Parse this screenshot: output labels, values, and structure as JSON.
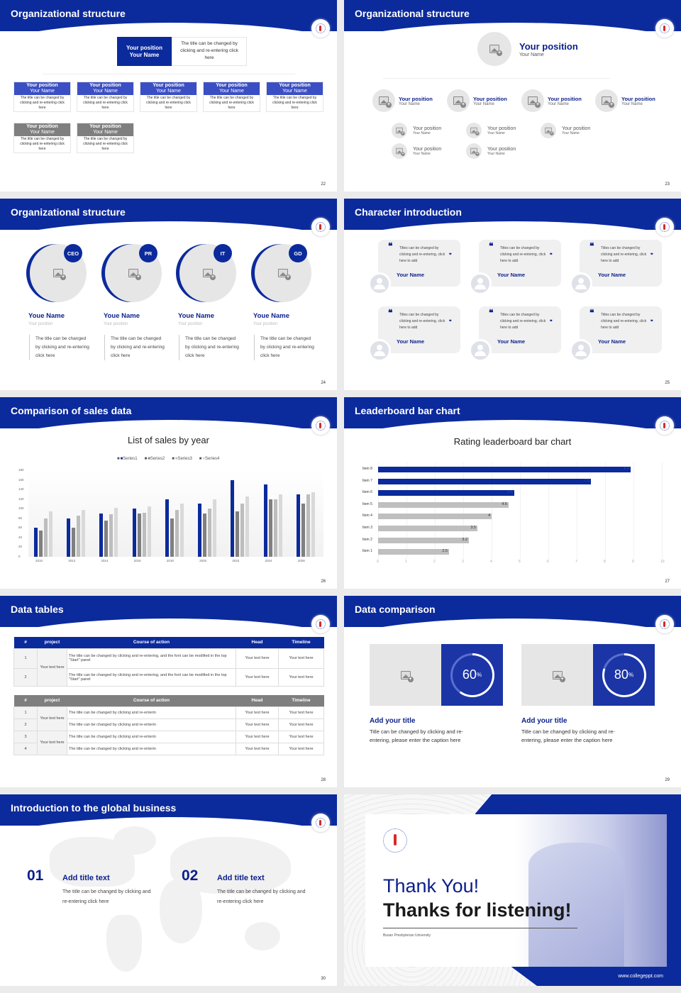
{
  "colors": {
    "brand": "#0b2a9c",
    "navy": "#0b1f8a",
    "gray_dark": "#808080",
    "gray_mid": "#bdbdbd",
    "gray_light": "#d9d9d9"
  },
  "slides": [
    {
      "title": "Organizational structure",
      "page": "22",
      "top": {
        "position": "Your position",
        "name": "Your Name",
        "desc": "The title can be changed by clicking and re-entering click here"
      },
      "row1": [
        {
          "position": "Your position",
          "name": "Your Name",
          "desc": "The title can be changed by clicking and re-entering click here"
        },
        {
          "position": "Your position",
          "name": "Your Name",
          "desc": "The title can be changed by clicking and re-entering click here"
        },
        {
          "position": "Your position",
          "name": "Your Name",
          "desc": "The title can be changed by clicking and re-entering click here"
        },
        {
          "position": "Your position",
          "name": "Your Name",
          "desc": "The title can be changed by clicking and re-entering click here"
        },
        {
          "position": "Your position",
          "name": "Your Name",
          "desc": "The title can be changed by clicking and re-entering click here"
        }
      ],
      "row2": [
        {
          "position": "Your position",
          "name": "Your Name",
          "desc": "The title can be changed by clicking and re-entering click here"
        },
        {
          "position": "Your position",
          "name": "Your Name",
          "desc": "The title can be changed by clicking and re-entering click here"
        }
      ]
    },
    {
      "title": "Organizational structure",
      "page": "23",
      "top": {
        "position": "Your position",
        "name": "Your Name"
      },
      "level1": [
        {
          "position": "Your position",
          "name": "Your Name"
        },
        {
          "position": "Your position",
          "name": "Your Name"
        },
        {
          "position": "Your position",
          "name": "Your Name"
        },
        {
          "position": "Your position",
          "name": "Your Name"
        }
      ],
      "level2": [
        {
          "position": "Your position",
          "name": "Your Name"
        },
        {
          "position": "Your position",
          "name": "Your Name"
        },
        {
          "position": "Your position",
          "name": "Your Name"
        },
        {
          "position": "Your position",
          "name": "Your Name"
        },
        {
          "position": "Your position",
          "name": "Your Name"
        }
      ]
    },
    {
      "title": "Organizational structure",
      "page": "24",
      "people": [
        {
          "badge": "CEO",
          "name": "Youe Name",
          "position": "Your position",
          "desc": "The title can be changed by clicking and re-entering click here"
        },
        {
          "badge": "PR",
          "name": "Youe Name",
          "position": "Your position",
          "desc": "The title can be changed by clicking and re-entering click here"
        },
        {
          "badge": "IT",
          "name": "Youe Name",
          "position": "Your position",
          "desc": "The title can be changed by clicking and re-entering click here"
        },
        {
          "badge": "GD",
          "name": "Youe Name",
          "position": "Your position",
          "desc": "The title can be changed by clicking and re-entering click here"
        }
      ]
    },
    {
      "title": "Character introduction",
      "page": "25",
      "cards": [
        {
          "quote": "Titles can be changed by clicking and re-entering, click here to add",
          "name": "Your Name"
        },
        {
          "quote": "Titles can be changed by clicking and re-entering, click here to add",
          "name": "Your Name"
        },
        {
          "quote": "Titles can be changed by clicking and re-entering, click here to add",
          "name": "Your Name"
        },
        {
          "quote": "Titles can be changed by clicking and re-entering, click here to add",
          "name": "Your Name"
        },
        {
          "quote": "Titles can be changed by clicking and re-entering, click here to add",
          "name": "Your Name"
        },
        {
          "quote": "Titles can be changed by clicking and re-entering, click here to add",
          "name": "Your Name"
        }
      ]
    },
    {
      "title": "Comparison of sales data",
      "page": "26",
      "chart_title": "List of sales by year"
    },
    {
      "title": "Leaderboard bar chart",
      "page": "27",
      "chart_title": "Rating leaderboard bar chart"
    },
    {
      "title": "Data tables",
      "page": "28",
      "table1": {
        "headers": [
          "#",
          "project",
          "Course of action",
          "Head",
          "Timeline"
        ],
        "project": "Your text here",
        "rows": [
          {
            "n": "1",
            "action": "The title can be changed by clicking and re-entering, and the font can be modified in the top \"Start\" panel",
            "head": "Your text here",
            "timeline": "Your text here"
          },
          {
            "n": "2",
            "action": "The title can be changed by clicking and re-entering, and the font can be modified in the top \"Start\" panel",
            "head": "Your text here",
            "timeline": "Your text here"
          }
        ]
      },
      "table2": {
        "headers": [
          "#",
          "project",
          "Course of action",
          "Head",
          "Timeline"
        ],
        "project_a": "Your text here",
        "project_b": "Your text here",
        "rows": [
          {
            "n": "1",
            "action": "The title can be changed by clicking and re-enterin",
            "head": "Your text here",
            "timeline": "Your text here"
          },
          {
            "n": "2",
            "action": "The title can be changed by clicking and re-enterin",
            "head": "Your text here",
            "timeline": "Your text here"
          },
          {
            "n": "3",
            "action": "The title can be changed by clicking and re-enterin",
            "head": "Your text here",
            "timeline": "Your text here"
          },
          {
            "n": "4",
            "action": "The title can be changed by clicking and re-enterin",
            "head": "Your text here",
            "timeline": "Your text here"
          }
        ]
      }
    },
    {
      "title": "Data comparison",
      "page": "29",
      "items": [
        {
          "value": "60",
          "unit": "%",
          "title": "Add your title",
          "desc": "Title can be changed by clicking and re-entering, please enter the caption here"
        },
        {
          "value": "80",
          "unit": "%",
          "title": "Add your title",
          "desc": "Title can be changed by clicking and re-entering, please enter the caption here"
        }
      ]
    },
    {
      "title": "Introduction to the global business",
      "page": "30",
      "items": [
        {
          "num": "01",
          "title": "Add title text",
          "desc": "The title can be changed by clicking and re-entering click here"
        },
        {
          "num": "02",
          "title": "Add title text",
          "desc": "The title can be changed by clicking and re-entering click here"
        }
      ]
    },
    {
      "thank": "Thank You!",
      "thanks": "Thanks for listening!",
      "university": "Busan Presbyterian University",
      "site": "www.collegeppt.com"
    }
  ],
  "chart_data": [
    {
      "type": "bar",
      "title": "List of sales by year",
      "categories": [
        "2010",
        "2012",
        "2014",
        "2016",
        "2018",
        "2020",
        "2022",
        "2024",
        "2026"
      ],
      "series": [
        {
          "name": "Series1",
          "values": [
            60,
            80,
            90,
            100,
            120,
            110,
            160,
            150,
            130
          ]
        },
        {
          "name": "Series2",
          "values": [
            55,
            60,
            75,
            90,
            80,
            90,
            95,
            120,
            110
          ]
        },
        {
          "name": "Series3",
          "values": [
            80,
            85,
            88,
            92,
            98,
            100,
            110,
            120,
            130
          ]
        },
        {
          "name": "Series4",
          "values": [
            95,
            98,
            102,
            105,
            110,
            120,
            126,
            130,
            135
          ]
        }
      ],
      "ylim": [
        0,
        180
      ],
      "yticks": [
        0,
        20,
        40,
        60,
        80,
        100,
        120,
        140,
        160,
        180
      ],
      "legend_position": "top",
      "grid": false
    },
    {
      "type": "bar",
      "orientation": "horizontal",
      "title": "Rating leaderboard bar chart",
      "categories": [
        "Item 8",
        "Item 7",
        "Item 6",
        "Item 5",
        "Item 4",
        "Item 3",
        "Item 2",
        "Item 1"
      ],
      "values": [
        8.9,
        7.5,
        4.8,
        4.6,
        4,
        3.5,
        3.2,
        2.5
      ],
      "xlim": [
        0,
        10
      ],
      "xticks": [
        0,
        1,
        2,
        3,
        4,
        5,
        6,
        7,
        8,
        9,
        10
      ],
      "highlight_top": 3,
      "grid": true
    }
  ]
}
